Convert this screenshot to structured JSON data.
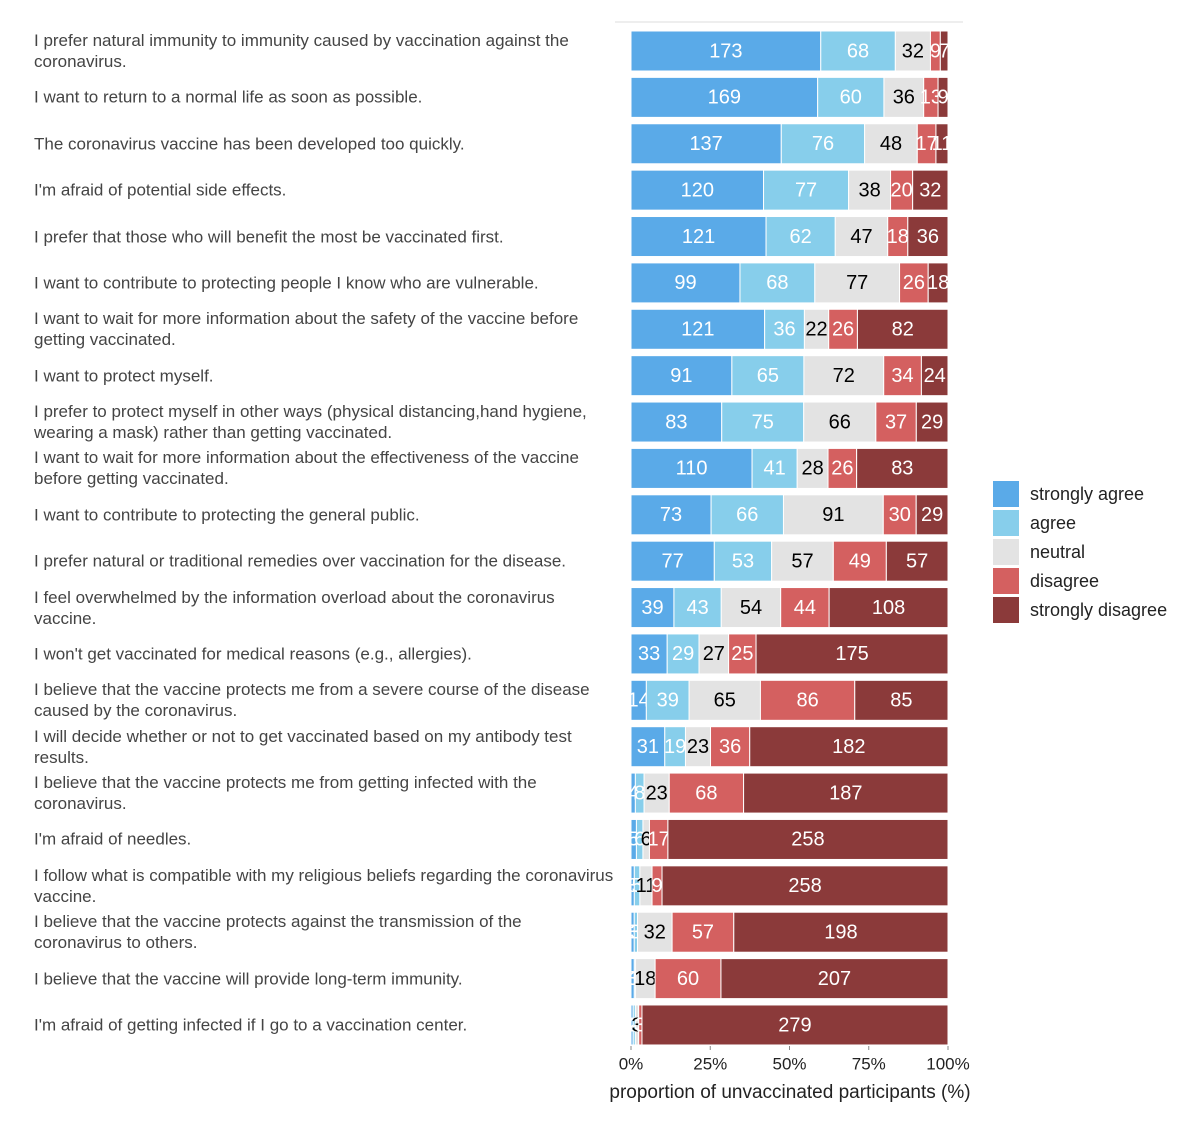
{
  "chart_data": {
    "type": "stacked_bar_100",
    "xlabel": "proportion of unvaccinated participants (%)",
    "xlim": [
      0,
      100
    ],
    "xticks": [
      {
        "value": 0,
        "label": "0%"
      },
      {
        "value": 25,
        "label": "25%"
      },
      {
        "value": 50,
        "label": "50%"
      },
      {
        "value": 75,
        "label": "75%"
      },
      {
        "value": 100,
        "label": "100%"
      }
    ],
    "categories": [
      "I prefer natural immunity to immunity caused by vaccination against the coronavirus.",
      "I want to return to a normal life as soon as possible.",
      "The coronavirus vaccine has been developed too quickly.",
      "I'm afraid of potential side effects.",
      "I prefer that those who will benefit the most be vaccinated first.",
      "I want to contribute to protecting people I know who are vulnerable.",
      "I want to wait for more information about the safety of the vaccine before getting vaccinated.",
      "I want to protect myself.",
      "I prefer to protect myself in other ways (physical distancing,hand hygiene, wearing a mask) rather than getting vaccinated.",
      "I want to wait for more information about the effectiveness of the vaccine before getting vaccinated.",
      "I want to contribute to protecting the general public.",
      "I prefer natural or traditional remedies over vaccination for the disease.",
      "I feel overwhelmed by the information overload about the coronavirus vaccine.",
      "I won't get vaccinated for medical reasons (e.g., allergies).",
      "I believe that the vaccine protects me from a severe course of the disease caused by the coronavirus.",
      "I will decide whether or not to get vaccinated based on my antibody test results.",
      "I believe that the vaccine protects me from getting infected with the coronavirus.",
      "I'm afraid of needles.",
      "I follow what is compatible with my religious beliefs regarding the coronavirus vaccine.",
      "I believe that the vaccine protects against the transmission of the coronavirus to others.",
      "I believe that the vaccine will provide long-term immunity.",
      "I'm afraid of getting infected if I go to a vaccination center."
    ],
    "series": [
      {
        "name": "strongly agree",
        "color": "#5aaae8",
        "text_color": "#ffffff",
        "values": [
          173,
          169,
          137,
          120,
          121,
          99,
          121,
          91,
          83,
          110,
          73,
          77,
          39,
          33,
          14,
          31,
          4,
          5,
          3,
          3,
          3,
          2
        ]
      },
      {
        "name": "agree",
        "color": "#87ceeb",
        "text_color": "#ffffff",
        "values": [
          68,
          60,
          76,
          77,
          62,
          68,
          36,
          65,
          75,
          41,
          66,
          53,
          43,
          29,
          39,
          19,
          8,
          6,
          5,
          3,
          1,
          2
        ]
      },
      {
        "name": "neutral",
        "color": "#e3e3e3",
        "text_color": "#000000",
        "values": [
          32,
          36,
          48,
          38,
          47,
          77,
          22,
          72,
          66,
          28,
          91,
          57,
          54,
          27,
          65,
          23,
          23,
          6,
          11,
          32,
          18,
          3
        ]
      },
      {
        "name": "disagree",
        "color": "#d46060",
        "text_color": "#ffffff",
        "values": [
          9,
          13,
          17,
          20,
          18,
          26,
          26,
          34,
          37,
          26,
          30,
          49,
          44,
          25,
          86,
          36,
          68,
          17,
          9,
          57,
          60,
          3
        ]
      },
      {
        "name": "strongly disagree",
        "color": "#8b3a3a",
        "text_color": "#ffffff",
        "values": [
          7,
          9,
          11,
          32,
          36,
          18,
          82,
          24,
          29,
          83,
          29,
          57,
          108,
          175,
          85,
          182,
          187,
          258,
          258,
          198,
          207,
          279
        ]
      }
    ]
  }
}
